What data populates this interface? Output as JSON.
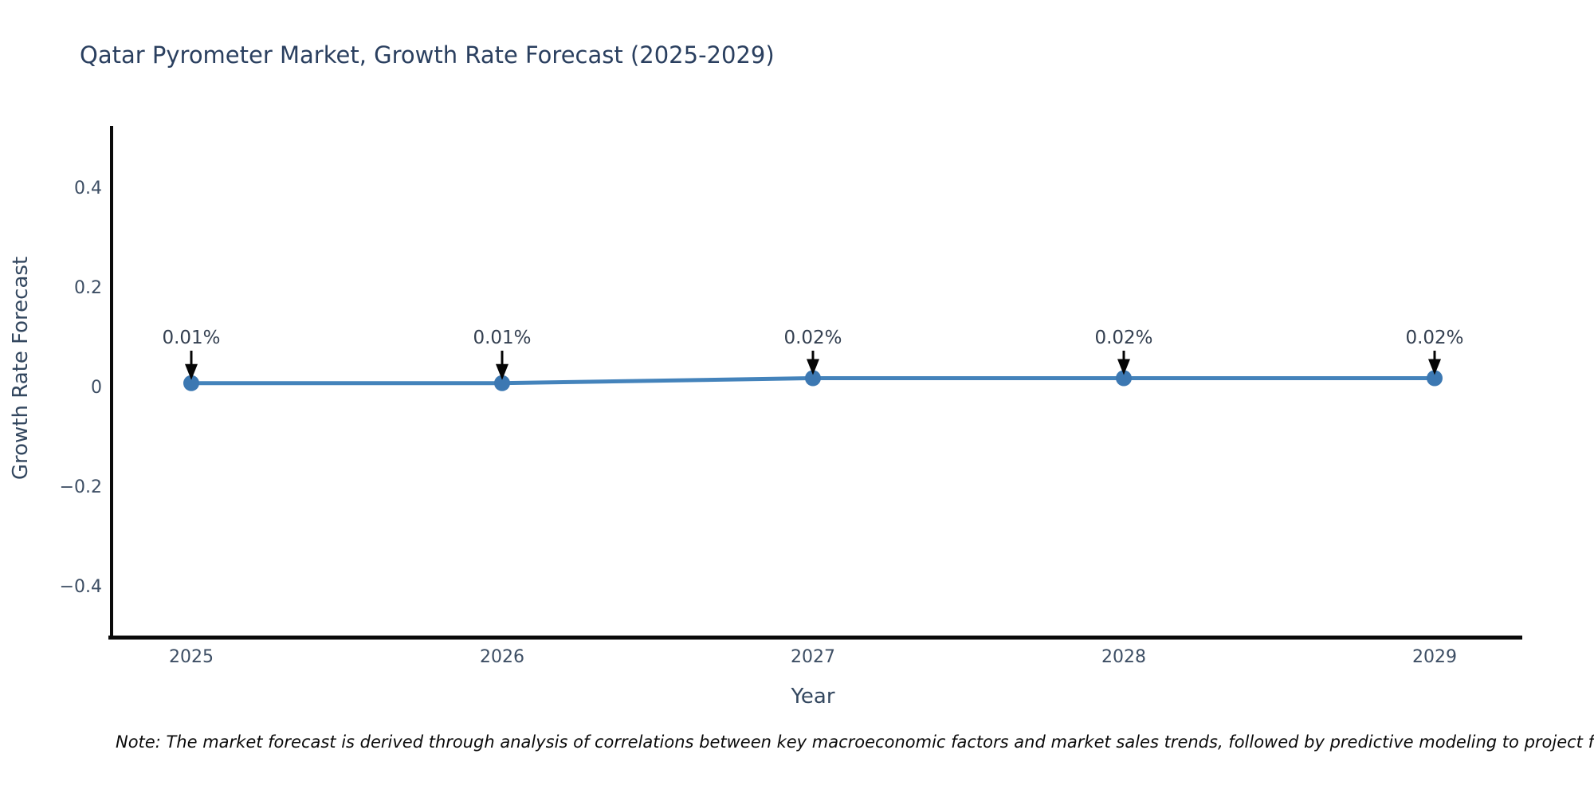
{
  "figure": {
    "note": "Note: The market forecast is derived through analysis of correlations between key macroeconomic factors and market sales trends, followed by predictive modeling to project future sales."
  },
  "chart_data": {
    "type": "line",
    "title": "Qatar Pyrometer Market, Growth Rate Forecast (2025-2029)",
    "xlabel": "Year",
    "ylabel": "Growth Rate Forecast",
    "categories": [
      "2025",
      "2026",
      "2027",
      "2028",
      "2029"
    ],
    "values": [
      0.01,
      0.01,
      0.02,
      0.02,
      0.02
    ],
    "point_labels": [
      "0.01%",
      "0.01%",
      "0.02%",
      "0.02%",
      "0.02%"
    ],
    "ytick_values": [
      0.4,
      0.2,
      0,
      -0.2,
      -0.4
    ],
    "ytick_labels": [
      "0.4",
      "0.2",
      "0",
      "−0.2",
      "−0.4"
    ],
    "ylim": [
      -0.52,
      0.52
    ],
    "grid": false,
    "legend": "none",
    "colors": {
      "line": "#4483bb",
      "marker": "#3c78b2",
      "arrow": "#050505",
      "spine": "#0a0a0a",
      "title_text": "#2a3f5f",
      "tick_text": "#3d4e64"
    }
  }
}
